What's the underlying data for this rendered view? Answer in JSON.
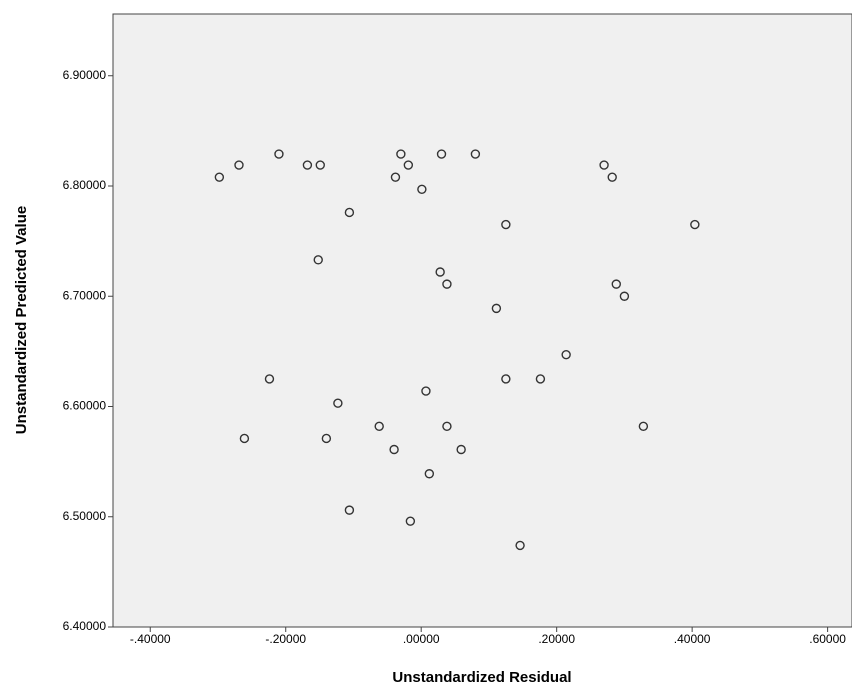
{
  "chart_data": {
    "type": "scatter",
    "x_label": "Unstandardized Residual",
    "y_label": "Unstandardized Predicted Value",
    "xlim": [
      -0.455,
      0.636
    ],
    "ylim": [
      6.4,
      6.956
    ],
    "xticks": [
      {
        "value": -0.4,
        "label": "-.40000"
      },
      {
        "value": -0.2,
        "label": "-.20000"
      },
      {
        "value": 0,
        "label": ".00000"
      },
      {
        "value": 0.2,
        "label": ".20000"
      },
      {
        "value": 0.4,
        "label": ".40000"
      },
      {
        "value": 0.6,
        "label": ".60000"
      }
    ],
    "yticks": [
      {
        "value": 6.4,
        "label": "6.40000"
      },
      {
        "value": 6.5,
        "label": "6.50000"
      },
      {
        "value": 6.6,
        "label": "6.60000"
      },
      {
        "value": 6.7,
        "label": "6.70000"
      },
      {
        "value": 6.8,
        "label": "6.80000"
      },
      {
        "value": 6.9,
        "label": "6.90000"
      }
    ],
    "color": "#333333",
    "x": [
      -0.298,
      -0.269,
      -0.21,
      -0.168,
      -0.149,
      -0.03,
      -0.019,
      -0.038,
      0.001,
      0.03,
      0.08,
      0.27,
      0.282,
      -0.106,
      0.125,
      0.404,
      -0.152,
      0.028,
      0.038,
      0.288,
      0.3,
      0.111,
      0.214,
      -0.224,
      0.125,
      0.176,
      -0.123,
      0.007,
      -0.261,
      -0.14,
      -0.062,
      0.038,
      0.328,
      -0.04,
      0.059,
      0.012,
      -0.106,
      -0.016,
      0.146
    ],
    "y": [
      6.808,
      6.819,
      6.829,
      6.819,
      6.819,
      6.829,
      6.819,
      6.808,
      6.797,
      6.829,
      6.829,
      6.819,
      6.808,
      6.776,
      6.765,
      6.765,
      6.733,
      6.722,
      6.711,
      6.711,
      6.7,
      6.689,
      6.647,
      6.625,
      6.625,
      6.625,
      6.603,
      6.614,
      6.571,
      6.571,
      6.582,
      6.582,
      6.582,
      6.561,
      6.561,
      6.539,
      6.506,
      6.496,
      6.474
    ]
  }
}
